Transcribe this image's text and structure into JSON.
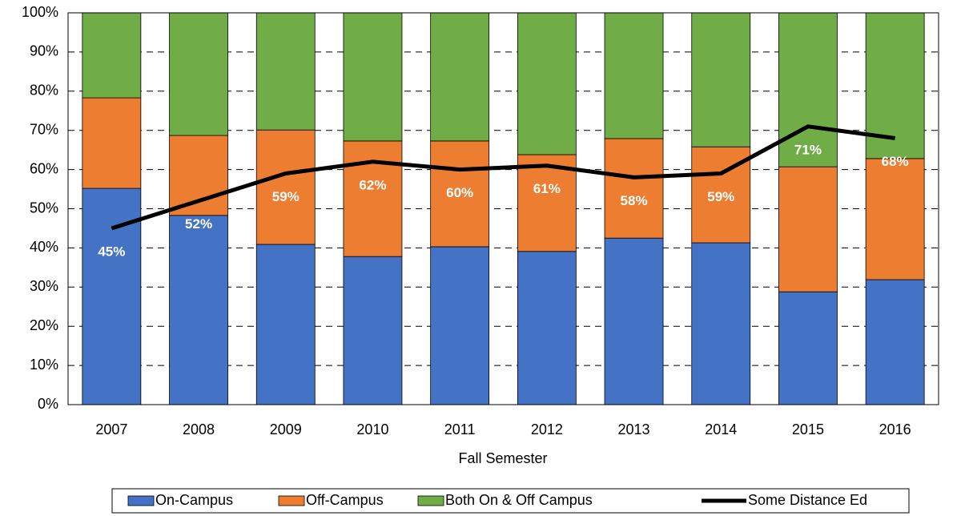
{
  "chart_data": {
    "type": "bar",
    "stacked": true,
    "x_label": "Fall Semester",
    "categories": [
      "2007",
      "2008",
      "2009",
      "2010",
      "2011",
      "2012",
      "2013",
      "2014",
      "2015",
      "2016"
    ],
    "ylim": [
      0,
      100
    ],
    "yticks": [
      {
        "value": 0,
        "label": "0%"
      },
      {
        "value": 10,
        "label": "10%"
      },
      {
        "value": 20,
        "label": "20%"
      },
      {
        "value": 30,
        "label": "30%"
      },
      {
        "value": 40,
        "label": "40%"
      },
      {
        "value": 50,
        "label": "50%"
      },
      {
        "value": 60,
        "label": "60%"
      },
      {
        "value": 70,
        "label": "70%"
      },
      {
        "value": 80,
        "label": "80%"
      },
      {
        "value": 90,
        "label": "90%"
      },
      {
        "value": 100,
        "label": "100%"
      }
    ],
    "grid": true,
    "legend": "bottom",
    "series": [
      {
        "name": "On-Campus",
        "type": "bar",
        "color": "#4472c4",
        "values": [
          55.2,
          48.3,
          40.9,
          37.8,
          40.3,
          39.1,
          42.5,
          41.3,
          28.8,
          31.9
        ]
      },
      {
        "name": "Off-Campus",
        "type": "bar",
        "color": "#ed7d31",
        "values": [
          23.1,
          20.4,
          29.2,
          29.5,
          27.0,
          24.7,
          25.4,
          24.5,
          31.9,
          30.9
        ]
      },
      {
        "name": "Both On & Off Campus",
        "type": "bar",
        "color": "#70ad47",
        "values": [
          21.7,
          31.3,
          29.9,
          32.7,
          32.7,
          36.2,
          32.1,
          34.2,
          39.3,
          37.2
        ]
      },
      {
        "name": "Some Distance Ed",
        "type": "line",
        "color": "#000000",
        "values": [
          45,
          52,
          59,
          62,
          60,
          61,
          58,
          59,
          71,
          68
        ],
        "value_labels": [
          "45%",
          "52%",
          "59%",
          "62%",
          "60%",
          "61%",
          "58%",
          "59%",
          "71%",
          "68%"
        ]
      }
    ]
  }
}
